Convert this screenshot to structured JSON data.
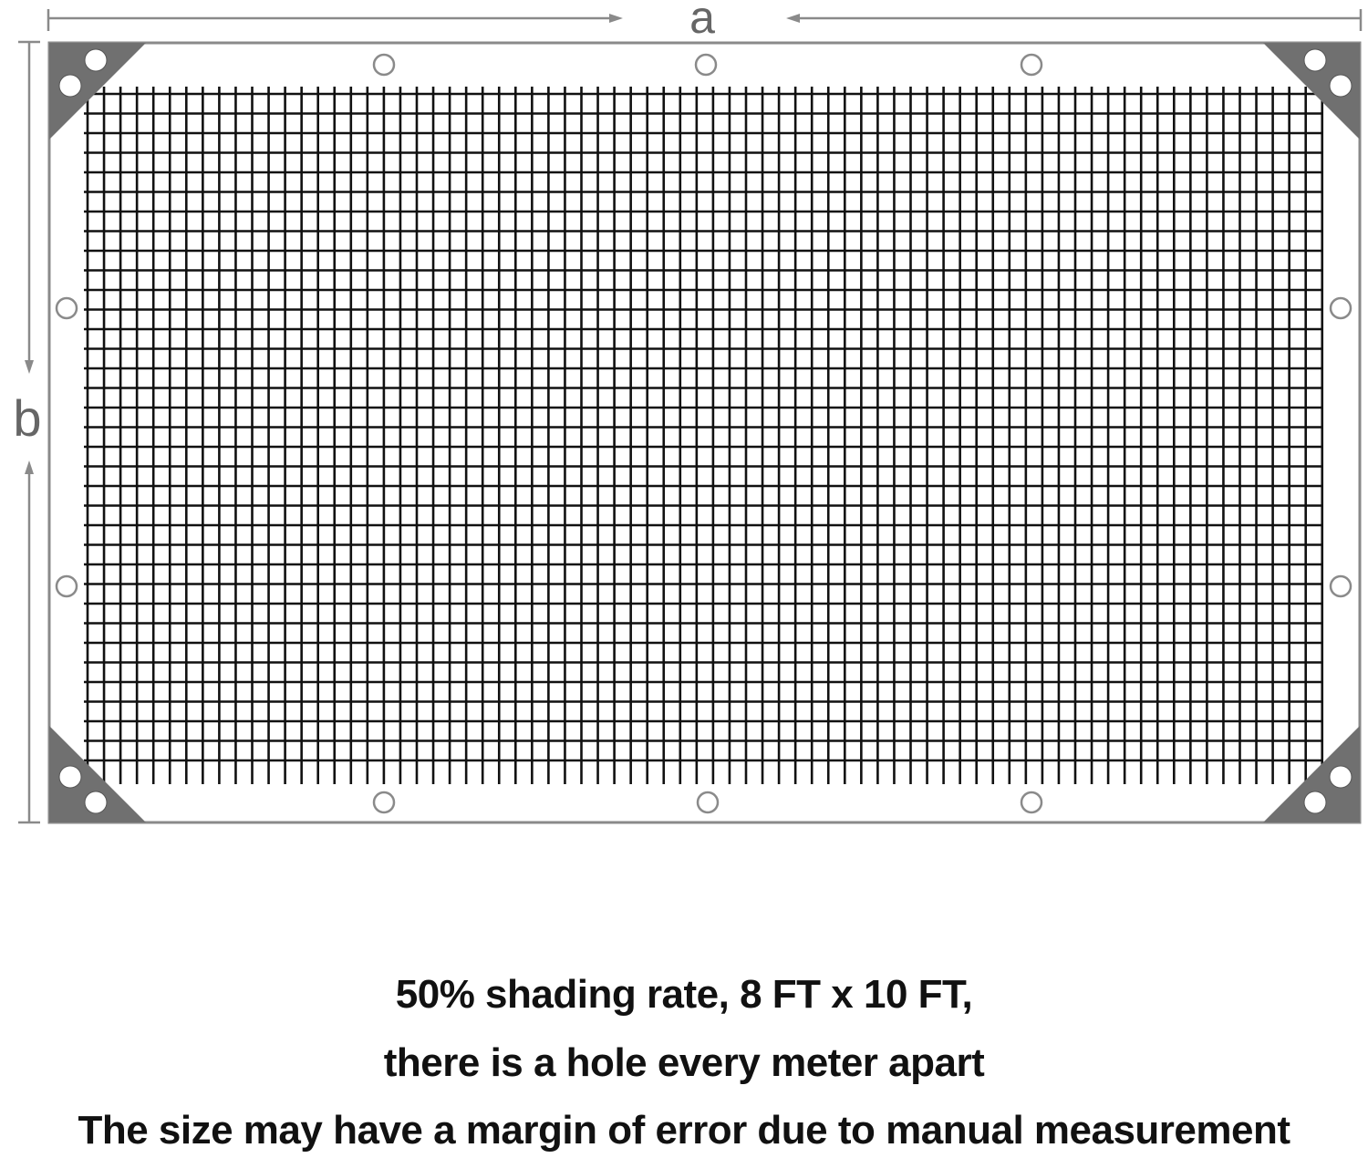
{
  "dimension_labels": {
    "width": "a",
    "height": "b"
  },
  "colors": {
    "frame": "#8a8a8a",
    "corner_patch": "#707070",
    "mesh": "#111111",
    "text": "#111111"
  },
  "caption": {
    "line1": "50% shading  rate, 8 FT x 10 FT,",
    "line2": "there is a hole every meter apart",
    "line3": "The size  may  have a margin of error due to manual measurement"
  }
}
